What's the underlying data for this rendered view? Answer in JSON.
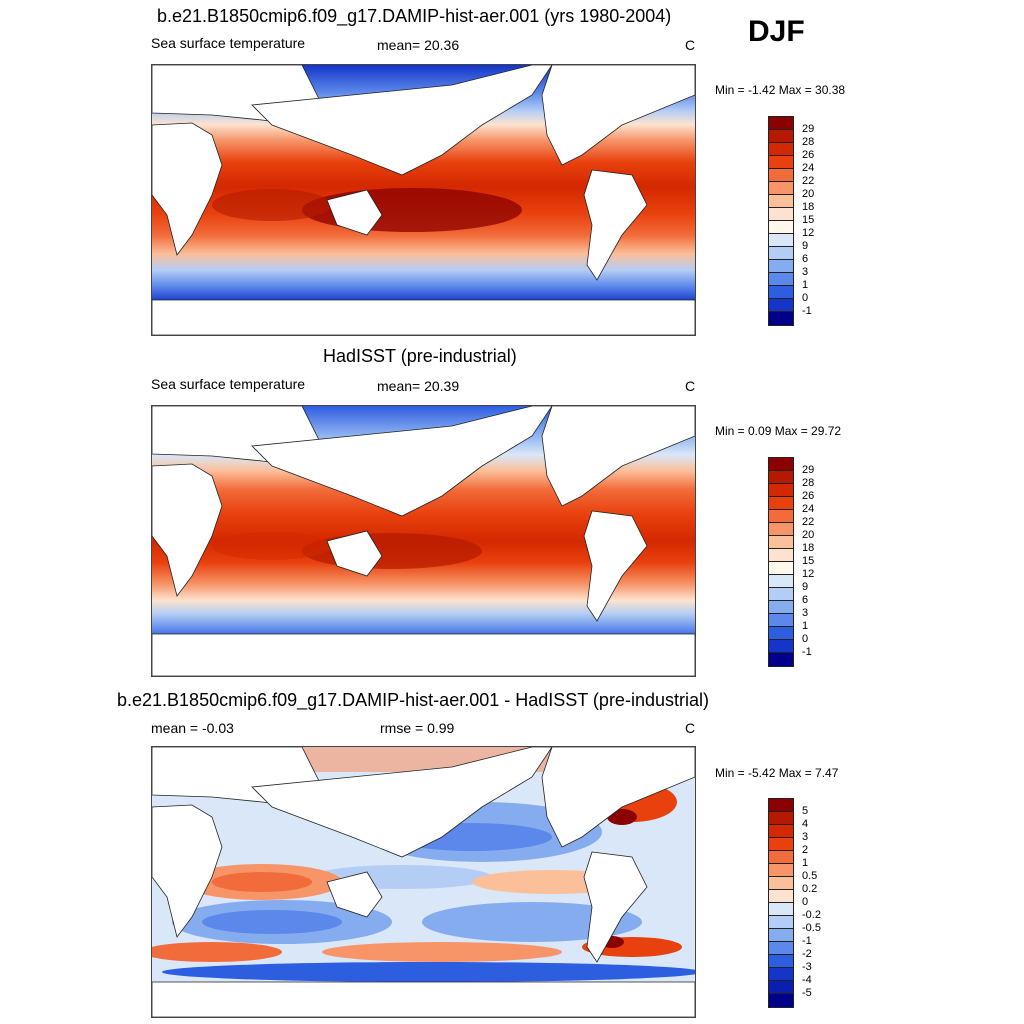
{
  "season": "DJF",
  "panels": [
    {
      "title": "b.e21.B1850cmip6.f09_g17.DAMIP-hist-aer.001 (yrs 1980-2004)",
      "left": "Sea surface temperature",
      "stat": "mean=  20.36",
      "units": "C",
      "minmax": "Min =  -1.42 Max =  30.38"
    },
    {
      "title": "HadISST (pre-industrial)",
      "left": "Sea surface temperature",
      "stat": "mean=  20.39",
      "units": "C",
      "minmax": "Min =   0.09 Max =  29.72"
    },
    {
      "title": "b.e21.B1850cmip6.f09_g17.DAMIP-hist-aer.001 - HadISST (pre-industrial)",
      "left": "mean =  -0.03",
      "stat": "rmse =    0.99",
      "units": "C",
      "minmax": "Min =  -5.42 Max =   7.47"
    }
  ],
  "colorbar_sst": {
    "labels": [
      "29",
      "28",
      "26",
      "24",
      "22",
      "20",
      "18",
      "15",
      "12",
      "9",
      "6",
      "3",
      "1",
      "0",
      "-1"
    ],
    "colors": [
      "#8b0000",
      "#b51a00",
      "#d42800",
      "#e8410e",
      "#f26b3a",
      "#f79468",
      "#fbbf9a",
      "#fde3cf",
      "#fff6ec",
      "#d9e7f9",
      "#b3cdf5",
      "#86acf0",
      "#5b88ea",
      "#2e5ee0",
      "#1535c9",
      "#00008b"
    ]
  },
  "colorbar_diff": {
    "labels": [
      "5",
      "4",
      "3",
      "2",
      "1",
      "0.5",
      "0.2",
      "0",
      "-0.2",
      "-0.5",
      "-1",
      "-2",
      "-3",
      "-4",
      "-5"
    ],
    "colors": [
      "#8b0000",
      "#b51a00",
      "#d42800",
      "#e8410e",
      "#f26b3a",
      "#f79468",
      "#fbbf9a",
      "#fde3cf",
      "#d9e7f9",
      "#b3cdf5",
      "#86acf0",
      "#5b88ea",
      "#2e5ee0",
      "#1535c9",
      "#0a1fb0",
      "#00008b"
    ]
  }
}
